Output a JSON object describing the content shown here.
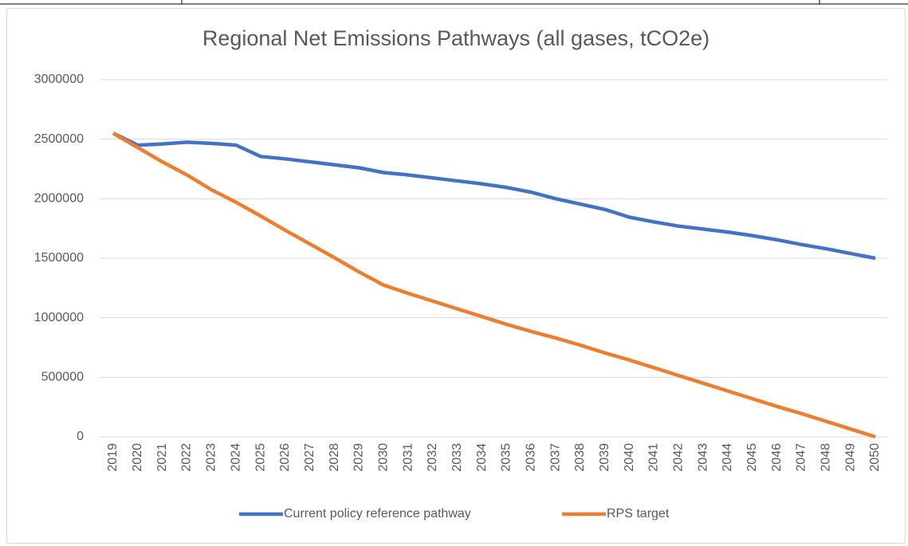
{
  "chart_data": {
    "type": "line",
    "title": "Regional Net Emissions Pathways (all gases, tCO2e)",
    "categories": [
      "2019",
      "2020",
      "2021",
      "2022",
      "2023",
      "2024",
      "2025",
      "2026",
      "2027",
      "2028",
      "2029",
      "2030",
      "2031",
      "2032",
      "2033",
      "2034",
      "2035",
      "2036",
      "2037",
      "2038",
      "2039",
      "2040",
      "2041",
      "2042",
      "2043",
      "2044",
      "2045",
      "2046",
      "2047",
      "2048",
      "2049",
      "2050"
    ],
    "series": [
      {
        "name": "Current policy reference pathway",
        "color": "#4472c4",
        "values": [
          2550000,
          2450000,
          2460000,
          2475000,
          2465000,
          2450000,
          2355000,
          2335000,
          2310000,
          2285000,
          2260000,
          2220000,
          2200000,
          2175000,
          2150000,
          2125000,
          2095000,
          2055000,
          2000000,
          1955000,
          1910000,
          1845000,
          1805000,
          1770000,
          1745000,
          1720000,
          1690000,
          1655000,
          1615000,
          1580000,
          1540000,
          1500000
        ]
      },
      {
        "name": "RPS target",
        "color": "#ed7d31",
        "values": [
          2550000,
          2430000,
          2310000,
          2200000,
          2075000,
          1970000,
          1855000,
          1735000,
          1620000,
          1505000,
          1385000,
          1275000,
          1205000,
          1140000,
          1075000,
          1010000,
          945000,
          885000,
          830000,
          770000,
          705000,
          645000,
          580000,
          515000,
          450000,
          385000,
          320000,
          255000,
          195000,
          130000,
          65000,
          0
        ]
      }
    ],
    "ylim": [
      0,
      3000000
    ],
    "yticks": [
      0,
      500000,
      1000000,
      1500000,
      2000000,
      2500000,
      3000000
    ],
    "grid": true,
    "legend": "bottom"
  }
}
